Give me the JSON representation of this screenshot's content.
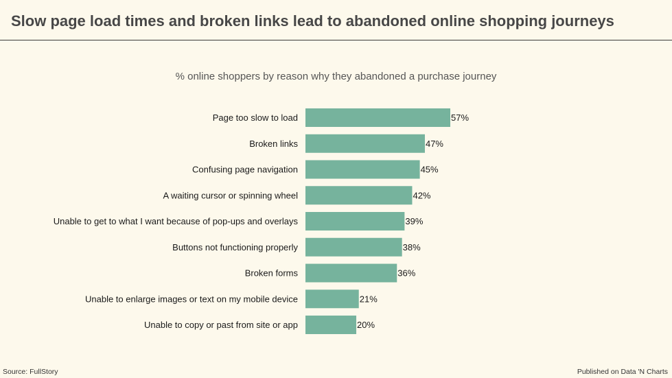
{
  "header": {
    "title": "Slow page load times and broken links lead to abandoned online shopping journeys"
  },
  "footer": {
    "source": "Source: FullStory",
    "published": "Published on Data 'N Charts"
  },
  "colors": {
    "bar": "#76b39d",
    "background": "#fdf9ec"
  },
  "chart_data": {
    "type": "bar",
    "orientation": "horizontal",
    "title": "% online shoppers by reason why they abandoned a purchase journey",
    "categories": [
      "Page too slow to load",
      "Broken links",
      "Confusing page navigation",
      "A waiting cursor or spinning wheel",
      "Unable to get to what I want because of pop-ups and overlays",
      "Buttons not functioning properly",
      "Broken forms",
      "Unable to enlarge images or text on my mobile device",
      "Unable to copy or past from site or app"
    ],
    "values": [
      57,
      47,
      45,
      42,
      39,
      38,
      36,
      21,
      20
    ],
    "value_labels": [
      "57%",
      "47%",
      "45%",
      "42%",
      "39%",
      "38%",
      "36%",
      "21%",
      "20%"
    ],
    "xlim": [
      0,
      100
    ],
    "grid": false,
    "legend": "none"
  }
}
